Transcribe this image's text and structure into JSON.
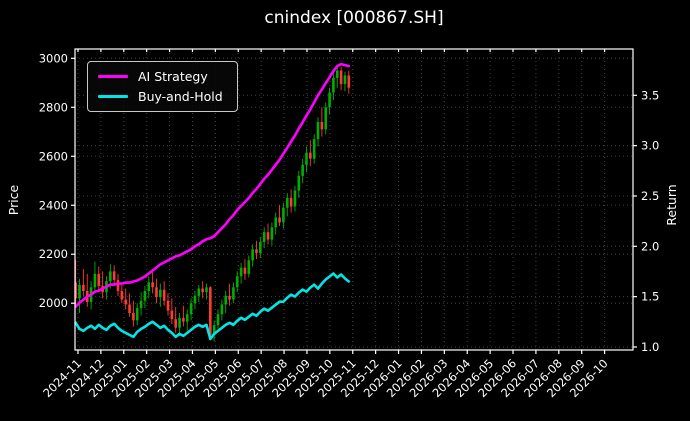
{
  "title": "cnindex [000867.SH]",
  "legend": {
    "items": [
      {
        "label": "AI Strategy",
        "color": "#ff00ff"
      },
      {
        "label": "Buy-and-Hold",
        "color": "#00e6e6"
      }
    ]
  },
  "axes": {
    "left_label": "Price",
    "right_label": "Return",
    "price_ticks": [
      2000,
      2200,
      2400,
      2600,
      2800,
      3000
    ],
    "price_range": [
      1809,
      3038
    ],
    "return_ticks": [
      1.0,
      1.5,
      2.0,
      2.5,
      3.0,
      3.5
    ],
    "return_range": [
      0.97,
      3.96
    ],
    "x_tick_labels": [
      "2024-11",
      "2024-12",
      "2025-01",
      "2025-02",
      "2025-03",
      "2025-04",
      "2025-05",
      "2025-06",
      "2025-07",
      "2025-08",
      "2025-09",
      "2025-10",
      "2025-11",
      "2025-12",
      "2026-01",
      "2026-02",
      "2026-03",
      "2026-04",
      "2026-05",
      "2026-06",
      "2026-07",
      "2026-08",
      "2026-09",
      "2026-10"
    ]
  },
  "chart_data": {
    "type": "candlestick+line",
    "title": "cnindex [000867.SH]",
    "xlabel": "",
    "ylabel_left": "Price",
    "ylabel_right": "Return",
    "grid": "dotted",
    "legend_position": "upper-left",
    "x_months_range": [
      -0.13,
      24.24
    ],
    "colors": {
      "up": "#00b000",
      "down": "#ff3b30",
      "background": "#000000",
      "text": "#ffffff",
      "ai": "#ff00ff",
      "bh": "#00e6e6"
    },
    "candles": {
      "t0": -0.1,
      "dt": 0.168,
      "time_unit": "months after 2024-11 tick",
      "ohlc": [
        [
          2085,
          2175,
          1995,
          2020
        ],
        [
          2020,
          2100,
          1960,
          2075
        ],
        [
          2075,
          2140,
          2030,
          2050
        ],
        [
          2050,
          2120,
          1985,
          2005
        ],
        [
          2005,
          2090,
          1975,
          2065
        ],
        [
          2065,
          2170,
          2040,
          2120
        ],
        [
          2120,
          2150,
          2050,
          2070
        ],
        [
          2070,
          2130,
          2020,
          2045
        ],
        [
          2045,
          2110,
          2015,
          2090
        ],
        [
          2090,
          2160,
          2060,
          2130
        ],
        [
          2130,
          2155,
          2070,
          2095
        ],
        [
          2095,
          2120,
          2030,
          2050
        ],
        [
          2050,
          2080,
          2000,
          2015
        ],
        [
          2015,
          2060,
          1975,
          1995
        ],
        [
          1995,
          2040,
          1945,
          1960
        ],
        [
          1960,
          2010,
          1905,
          1930
        ],
        [
          1930,
          2000,
          1910,
          1980
        ],
        [
          1980,
          2045,
          1950,
          2010
        ],
        [
          2010,
          2070,
          1980,
          2050
        ],
        [
          2050,
          2110,
          2020,
          2085
        ],
        [
          2085,
          2135,
          2040,
          2065
        ],
        [
          2065,
          2100,
          2000,
          2025
        ],
        [
          2025,
          2080,
          1985,
          2055
        ],
        [
          2055,
          2090,
          1990,
          2010
        ],
        [
          2010,
          2040,
          1950,
          1970
        ],
        [
          1970,
          2020,
          1915,
          1935
        ],
        [
          1935,
          1985,
          1880,
          1900
        ],
        [
          1900,
          1960,
          1865,
          1940
        ],
        [
          1940,
          1990,
          1905,
          1925
        ],
        [
          1925,
          1975,
          1890,
          1955
        ],
        [
          1955,
          2020,
          1930,
          2000
        ],
        [
          2000,
          2050,
          1975,
          2030
        ],
        [
          2030,
          2075,
          2005,
          2060
        ],
        [
          2060,
          2090,
          2020,
          2045
        ],
        [
          2045,
          2080,
          2015,
          2065
        ],
        [
          2065,
          2070,
          1850,
          1870
        ],
        [
          1870,
          1930,
          1845,
          1910
        ],
        [
          1910,
          1975,
          1895,
          1955
        ],
        [
          1955,
          2015,
          1930,
          1995
        ],
        [
          1995,
          2050,
          1960,
          2030
        ],
        [
          2030,
          2080,
          1990,
          2015
        ],
        [
          2015,
          2085,
          2000,
          2065
        ],
        [
          2065,
          2130,
          2045,
          2110
        ],
        [
          2110,
          2165,
          2080,
          2145
        ],
        [
          2145,
          2180,
          2095,
          2120
        ],
        [
          2120,
          2195,
          2105,
          2175
        ],
        [
          2175,
          2240,
          2150,
          2220
        ],
        [
          2220,
          2255,
          2180,
          2205
        ],
        [
          2205,
          2270,
          2185,
          2250
        ],
        [
          2250,
          2310,
          2225,
          2290
        ],
        [
          2290,
          2325,
          2240,
          2260
        ],
        [
          2260,
          2330,
          2235,
          2310
        ],
        [
          2310,
          2370,
          2280,
          2350
        ],
        [
          2350,
          2400,
          2315,
          2330
        ],
        [
          2330,
          2410,
          2305,
          2390
        ],
        [
          2390,
          2450,
          2355,
          2430
        ],
        [
          2430,
          2465,
          2370,
          2395
        ],
        [
          2395,
          2480,
          2375,
          2460
        ],
        [
          2460,
          2540,
          2430,
          2520
        ],
        [
          2520,
          2590,
          2490,
          2565
        ],
        [
          2565,
          2640,
          2535,
          2615
        ],
        [
          2615,
          2665,
          2560,
          2590
        ],
        [
          2590,
          2690,
          2570,
          2670
        ],
        [
          2670,
          2760,
          2640,
          2740
        ],
        [
          2740,
          2800,
          2680,
          2710
        ],
        [
          2710,
          2820,
          2690,
          2800
        ],
        [
          2800,
          2880,
          2770,
          2860
        ],
        [
          2860,
          2940,
          2830,
          2920
        ],
        [
          2920,
          2975,
          2880,
          2950
        ],
        [
          2950,
          2965,
          2870,
          2895
        ],
        [
          2895,
          2945,
          2865,
          2930
        ],
        [
          2930,
          2950,
          2855,
          2880
        ]
      ]
    },
    "series": [
      {
        "name": "AI Strategy",
        "axis": "return",
        "color": "#ff00ff",
        "values": [
          1.4,
          1.44,
          1.47,
          1.5,
          1.52,
          1.55,
          1.56,
          1.58,
          1.6,
          1.62,
          1.62,
          1.63,
          1.63,
          1.64,
          1.64,
          1.65,
          1.66,
          1.68,
          1.7,
          1.73,
          1.76,
          1.79,
          1.82,
          1.84,
          1.86,
          1.88,
          1.9,
          1.91,
          1.93,
          1.95,
          1.97,
          2.0,
          2.02,
          2.05,
          2.07,
          2.08,
          2.1,
          2.14,
          2.18,
          2.22,
          2.27,
          2.31,
          2.36,
          2.4,
          2.44,
          2.48,
          2.53,
          2.57,
          2.62,
          2.67,
          2.71,
          2.76,
          2.81,
          2.86,
          2.92,
          2.98,
          3.04,
          3.1,
          3.17,
          3.23,
          3.3,
          3.36,
          3.43,
          3.5,
          3.56,
          3.62,
          3.68,
          3.74,
          3.79,
          3.81,
          3.8,
          3.79
        ]
      },
      {
        "name": "Buy-and-Hold",
        "axis": "return",
        "color": "#00e6e6",
        "values": [
          1.24,
          1.18,
          1.16,
          1.19,
          1.21,
          1.18,
          1.22,
          1.19,
          1.17,
          1.21,
          1.23,
          1.19,
          1.16,
          1.14,
          1.12,
          1.1,
          1.15,
          1.18,
          1.2,
          1.23,
          1.25,
          1.22,
          1.19,
          1.21,
          1.17,
          1.14,
          1.1,
          1.13,
          1.11,
          1.14,
          1.17,
          1.2,
          1.22,
          1.2,
          1.22,
          1.08,
          1.13,
          1.16,
          1.19,
          1.22,
          1.24,
          1.22,
          1.26,
          1.29,
          1.27,
          1.3,
          1.33,
          1.31,
          1.35,
          1.38,
          1.36,
          1.39,
          1.42,
          1.45,
          1.45,
          1.49,
          1.52,
          1.5,
          1.54,
          1.57,
          1.55,
          1.59,
          1.62,
          1.58,
          1.63,
          1.67,
          1.7,
          1.73,
          1.69,
          1.72,
          1.68,
          1.65
        ]
      }
    ]
  }
}
